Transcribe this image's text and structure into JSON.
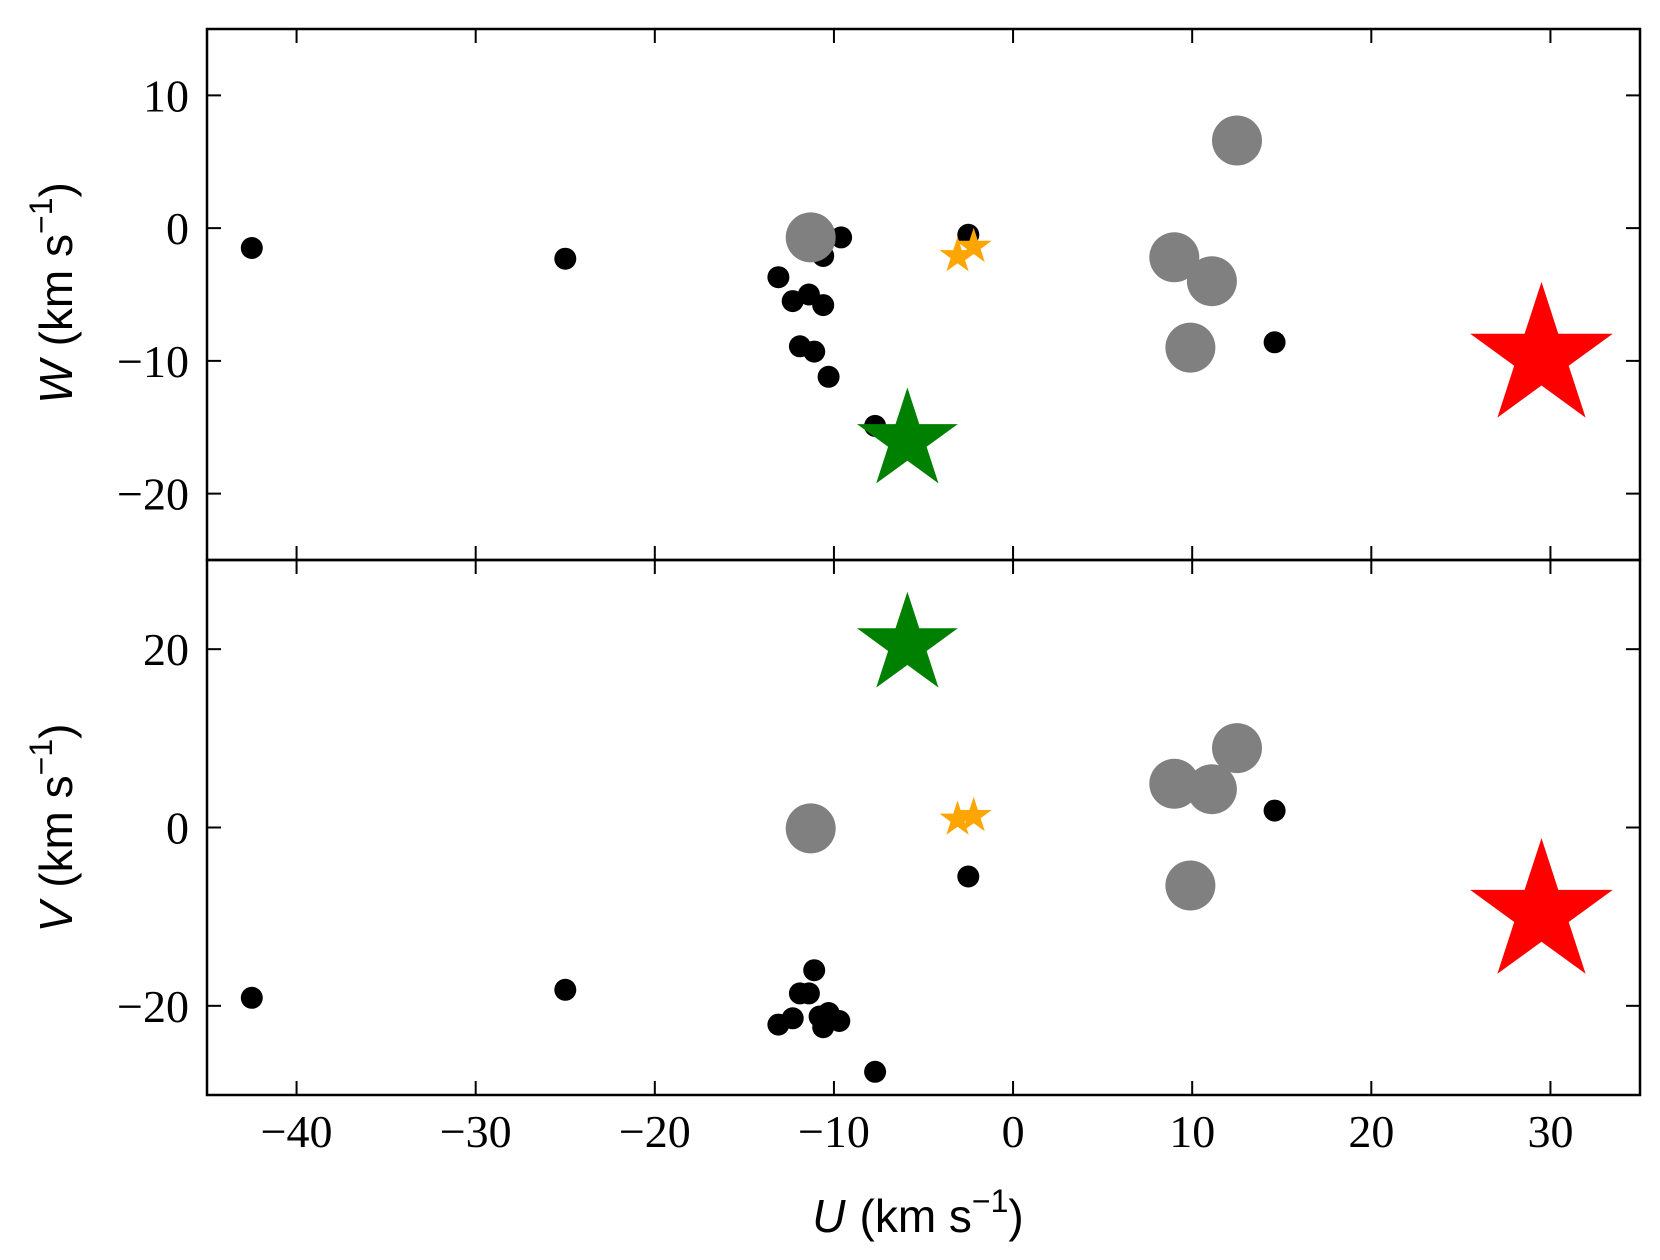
{
  "chart_data": {
    "type": "scatter",
    "shared_x": {
      "label_symbol": "U",
      "label_unit": "(km s",
      "label_sup": "−1",
      "label_close": ")",
      "lim": [
        -45,
        35
      ],
      "ticks": [
        -40,
        -30,
        -20,
        -10,
        0,
        10,
        20,
        30
      ],
      "tick_labels": [
        "−40",
        "−30",
        "−20",
        "−10",
        "0",
        "10",
        "20",
        "30"
      ]
    },
    "panels": [
      {
        "id": "top",
        "ylabel_symbol": "W",
        "ylabel_unit": "(km s",
        "ylabel_sup": "−1",
        "ylabel_close": ")",
        "ylim": [
          -25,
          15
        ],
        "yticks": [
          -20,
          -10,
          0,
          10
        ],
        "ytick_labels": [
          "−20",
          "−10",
          "0",
          "10"
        ],
        "series": [
          {
            "marker": "dot-black",
            "color": "#000000",
            "points": [
              [
                -42.5,
                -1.5
              ],
              [
                -25,
                -2.3
              ],
              [
                -13.1,
                -3.7
              ],
              [
                -12.3,
                -5.5
              ],
              [
                -11.4,
                -5.0
              ],
              [
                -10.6,
                -5.8
              ],
              [
                -10.6,
                -2.1
              ],
              [
                -9.6,
                -0.7
              ],
              [
                -11.9,
                -8.9
              ],
              [
                -11.1,
                -9.3
              ],
              [
                -10.3,
                -11.2
              ],
              [
                -7.7,
                -14.9
              ],
              [
                -2.5,
                -0.5
              ],
              [
                14.6,
                -8.6
              ]
            ]
          },
          {
            "marker": "circle-gray",
            "color": "#808080",
            "points": [
              [
                -11.3,
                -0.7
              ],
              [
                9.0,
                -2.2
              ],
              [
                11.1,
                -4.0
              ],
              [
                9.9,
                -9.0
              ],
              [
                12.5,
                6.6
              ]
            ]
          },
          {
            "marker": "star-orange",
            "color": "#FFA500",
            "points": [
              [
                -3.1,
                -2.1
              ],
              [
                -2.2,
                -1.4
              ]
            ]
          },
          {
            "marker": "star-green",
            "color": "#008000",
            "points": [
              [
                -5.9,
                -16.0
              ]
            ]
          },
          {
            "marker": "star-red",
            "color": "#FF0000",
            "points": [
              [
                29.5,
                -9.7
              ]
            ]
          }
        ]
      },
      {
        "id": "bottom",
        "ylabel_symbol": "V",
        "ylabel_unit": "(km s",
        "ylabel_sup": "−1",
        "ylabel_close": ")",
        "ylim": [
          -30,
          30
        ],
        "yticks": [
          -20,
          0,
          20
        ],
        "ytick_labels": [
          "−20",
          "0",
          "20"
        ],
        "series": [
          {
            "marker": "dot-black",
            "color": "#000000",
            "points": [
              [
                -42.5,
                -19.1
              ],
              [
                -25,
                -18.2
              ],
              [
                -13.1,
                -22.1
              ],
              [
                -12.3,
                -21.4
              ],
              [
                -11.9,
                -18.6
              ],
              [
                -11.4,
                -18.6
              ],
              [
                -11.1,
                -16.0
              ],
              [
                -10.8,
                -21.2
              ],
              [
                -10.3,
                -20.8
              ],
              [
                -10.6,
                -22.4
              ],
              [
                -9.7,
                -21.7
              ],
              [
                -7.7,
                -27.4
              ],
              [
                -2.5,
                -5.5
              ],
              [
                14.6,
                1.9
              ]
            ]
          },
          {
            "marker": "circle-gray",
            "color": "#808080",
            "points": [
              [
                -11.3,
                -0.1
              ],
              [
                9.0,
                4.9
              ],
              [
                11.1,
                4.3
              ],
              [
                12.5,
                8.9
              ],
              [
                9.9,
                -6.5
              ]
            ]
          },
          {
            "marker": "star-orange",
            "color": "#FFA500",
            "points": [
              [
                -3.1,
                0.9
              ],
              [
                -2.2,
                1.3
              ]
            ]
          },
          {
            "marker": "star-green",
            "color": "#008000",
            "points": [
              [
                -5.9,
                20.5
              ]
            ]
          },
          {
            "marker": "star-red",
            "color": "#FF0000",
            "points": [
              [
                29.5,
                -9.6
              ]
            ]
          }
        ]
      }
    ]
  }
}
